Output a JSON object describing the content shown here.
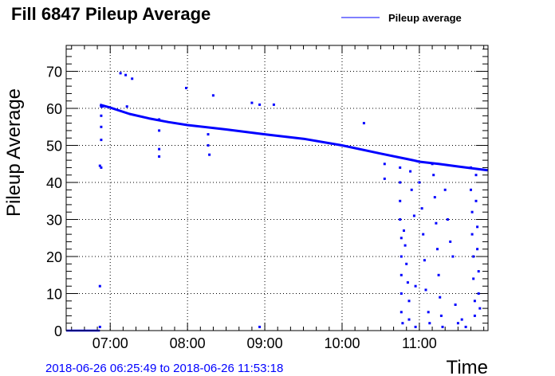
{
  "chart_data": {
    "type": "scatter",
    "title": "Fill 6847 Pileup Average",
    "xlabel": "Time",
    "ylabel": "Pileup Average",
    "x_tick_labels": [
      "07:00",
      "08:00",
      "09:00",
      "10:00",
      "11:00"
    ],
    "y_tick_labels": [
      "0",
      "10",
      "20",
      "30",
      "40",
      "50",
      "60",
      "70"
    ],
    "xlim": [
      "06:25:49",
      "11:53:18"
    ],
    "ylim": [
      0,
      77
    ],
    "grid": true,
    "legend": {
      "position": "top-right",
      "entries": [
        "Pileup average"
      ]
    },
    "footer": "2018-06-26 06:25:49 to 2018-06-26 11:53:18",
    "series": [
      {
        "name": "Pileup average",
        "color": "#0000ff",
        "trend": [
          [
            "06:52",
            61.0
          ],
          [
            "07:00",
            60.2
          ],
          [
            "07:15",
            58.5
          ],
          [
            "07:30",
            57.3
          ],
          [
            "07:45",
            56.3
          ],
          [
            "08:00",
            55.5
          ],
          [
            "08:30",
            54.3
          ],
          [
            "09:00",
            53.0
          ],
          [
            "09:30",
            51.8
          ],
          [
            "10:00",
            50.0
          ],
          [
            "10:30",
            47.8
          ],
          [
            "10:55",
            46.0
          ],
          [
            "11:00",
            45.6
          ],
          [
            "11:15",
            45.0
          ],
          [
            "11:30",
            44.3
          ],
          [
            "11:53",
            43.3
          ]
        ],
        "zero_segment": [
          [
            "06:25:49",
            0
          ],
          [
            "06:52",
            0
          ]
        ],
        "points": [
          [
            "06:52",
            12
          ],
          [
            "06:52",
            1
          ],
          [
            "06:53",
            60.5
          ],
          [
            "06:53",
            58
          ],
          [
            "06:53",
            55
          ],
          [
            "06:53",
            51.5
          ],
          [
            "06:52",
            44.5
          ],
          [
            "06:53",
            44
          ],
          [
            "06:54",
            60.5
          ],
          [
            "07:08",
            69.5
          ],
          [
            "07:12",
            69
          ],
          [
            "07:17",
            68
          ],
          [
            "07:13",
            60.5
          ],
          [
            "07:38",
            57
          ],
          [
            "07:38",
            54
          ],
          [
            "07:38",
            49
          ],
          [
            "07:38",
            47
          ],
          [
            "07:59",
            65.5
          ],
          [
            "08:16",
            53
          ],
          [
            "08:16",
            50
          ],
          [
            "08:17",
            47.5
          ],
          [
            "08:20",
            63.5
          ],
          [
            "08:50",
            61.5
          ],
          [
            "08:56",
            61
          ],
          [
            "08:56",
            1
          ],
          [
            "09:07",
            61
          ],
          [
            "10:17",
            56
          ],
          [
            "10:33",
            45
          ],
          [
            "10:33",
            41
          ],
          [
            "10:45",
            44
          ],
          [
            "10:45",
            40
          ],
          [
            "10:45",
            35
          ],
          [
            "10:45",
            30
          ],
          [
            "10:46",
            25
          ],
          [
            "10:46",
            20
          ],
          [
            "10:46",
            15
          ],
          [
            "10:46",
            10
          ],
          [
            "10:46",
            5
          ],
          [
            "10:47",
            2
          ],
          [
            "10:48",
            27
          ],
          [
            "10:49",
            23
          ],
          [
            "10:50",
            18
          ],
          [
            "10:51",
            13
          ],
          [
            "10:52",
            8
          ],
          [
            "10:52",
            3
          ],
          [
            "10:53",
            43
          ],
          [
            "10:54",
            38
          ],
          [
            "10:56",
            31
          ],
          [
            "10:57",
            12
          ],
          [
            "10:57",
            1
          ],
          [
            "11:00",
            40
          ],
          [
            "11:02",
            33
          ],
          [
            "11:03",
            26
          ],
          [
            "11:04",
            19
          ],
          [
            "11:05",
            11
          ],
          [
            "11:07",
            5
          ],
          [
            "11:08",
            2
          ],
          [
            "11:10",
            45
          ],
          [
            "11:11",
            42
          ],
          [
            "11:12",
            36
          ],
          [
            "11:13",
            29
          ],
          [
            "11:14",
            22
          ],
          [
            "11:15",
            15
          ],
          [
            "11:16",
            9
          ],
          [
            "11:17",
            4
          ],
          [
            "11:18",
            1
          ],
          [
            "11:20",
            38
          ],
          [
            "11:22",
            30
          ],
          [
            "11:24",
            24
          ],
          [
            "11:26",
            20
          ],
          [
            "11:28",
            7
          ],
          [
            "11:30",
            2
          ],
          [
            "11:33",
            3
          ],
          [
            "11:36",
            1
          ],
          [
            "11:40",
            44
          ],
          [
            "11:40",
            38
          ],
          [
            "11:41",
            32
          ],
          [
            "11:41",
            26
          ],
          [
            "11:42",
            20
          ],
          [
            "11:42",
            14
          ],
          [
            "11:43",
            8
          ],
          [
            "11:43",
            4
          ],
          [
            "11:44",
            42
          ],
          [
            "11:44",
            35
          ],
          [
            "11:45",
            28
          ],
          [
            "11:45",
            22
          ],
          [
            "11:46",
            16
          ],
          [
            "11:46",
            10
          ],
          [
            "11:47",
            6
          ]
        ]
      }
    ]
  }
}
